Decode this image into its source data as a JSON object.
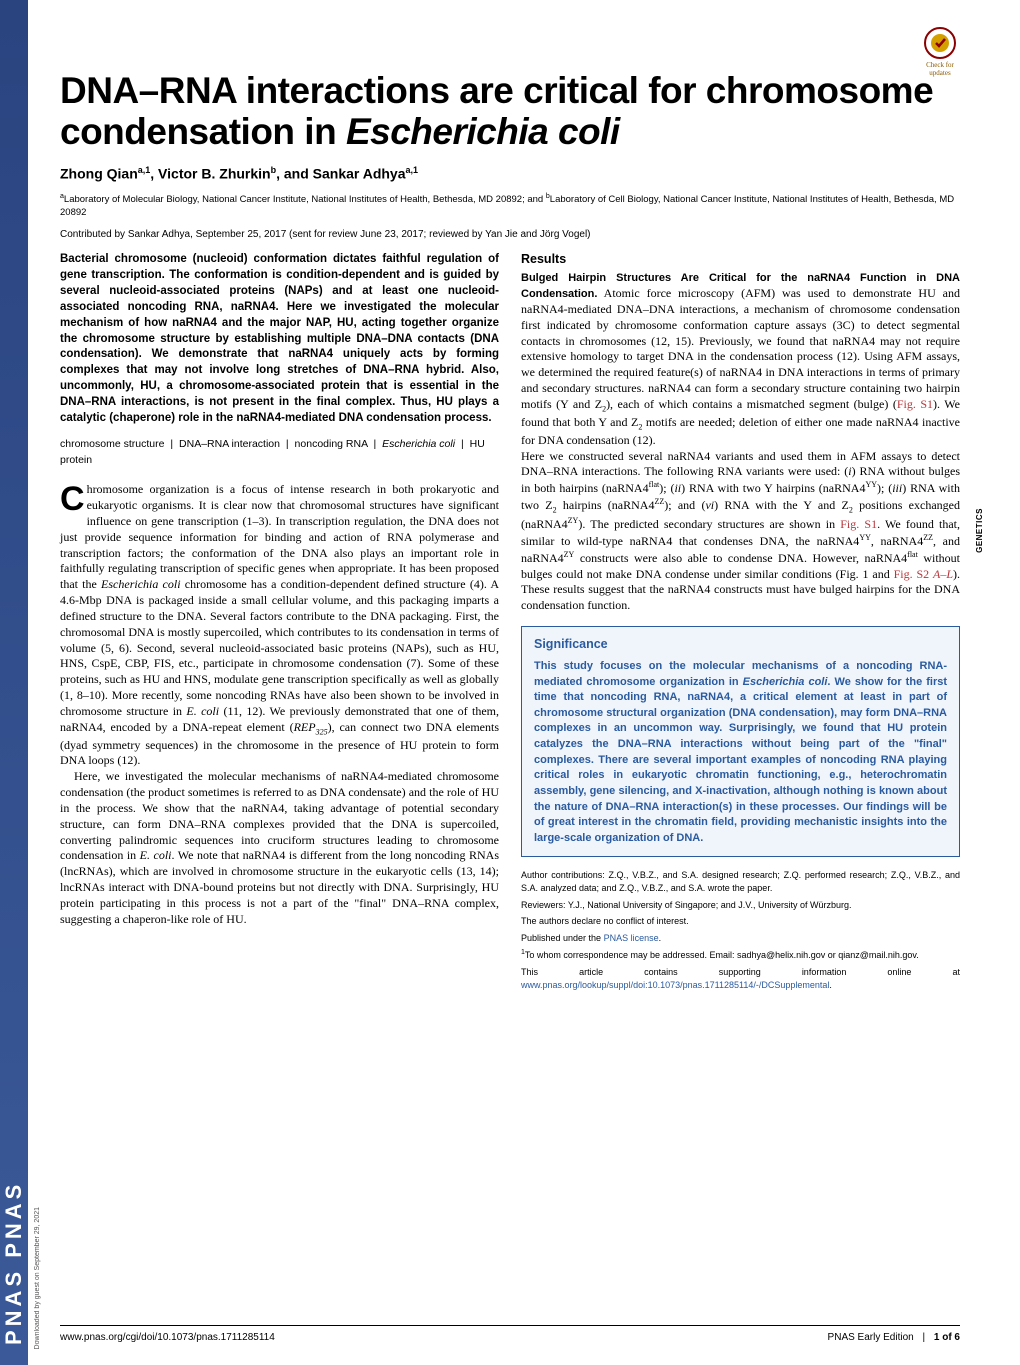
{
  "brand": "PNAS  PNAS",
  "checkUpdates": "Check for updates",
  "title_line1": "DNA–RNA interactions are critical for chromosome",
  "title_line2_a": "condensation in ",
  "title_line2_b": "Escherichia coli",
  "authors_html": "Zhong Qian<sup>a,1</sup>, Victor B. Zhurkin<sup>b</sup>, and Sankar Adhya<sup>a,1</sup>",
  "affiliations_html": "<sup>a</sup>Laboratory of Molecular Biology, National Cancer Institute, National Institutes of Health, Bethesda, MD 20892; and <sup>b</sup>Laboratory of Cell Biology, National Cancer Institute, National Institutes of Health, Bethesda, MD 20892",
  "contributed": "Contributed by Sankar Adhya, September 25, 2017 (sent for review June 23, 2017; reviewed by Yan Jie and Jörg Vogel)",
  "abstract": "Bacterial chromosome (nucleoid) conformation dictates faithful regulation of gene transcription. The conformation is condition-dependent and is guided by several nucleoid-associated proteins (NAPs) and at least one nucleoid-associated noncoding RNA, naRNA4. Here we investigated the molecular mechanism of how naRNA4 and the major NAP, HU, acting together organize the chromosome structure by establishing multiple DNA–DNA contacts (DNA condensation). We demonstrate that naRNA4 uniquely acts by forming complexes that may not involve long stretches of DNA–RNA hybrid. Also, uncommonly, HU, a chromosome-associated protein that is essential in the DNA–RNA interactions, is not present in the final complex. Thus, HU plays a catalytic (chaperone) role in the naRNA4-mediated DNA condensation process.",
  "keywords": [
    "chromosome structure",
    "DNA–RNA interaction",
    "noncoding RNA",
    "Escherichia coli",
    "HU protein"
  ],
  "intro_p1": "hromosome organization is a focus of intense research in both prokaryotic and eukaryotic organisms. It is clear now that chromosomal structures have significant influence on gene transcription (1–3). In transcription regulation, the DNA does not just provide sequence information for binding and action of RNA polymerase and transcription factors; the conformation of the DNA also plays an important role in faithfully regulating transcription of specific genes when appropriate. It has been proposed that the <span class=\"italic\">Escherichia coli</span> chromosome has a condition-dependent defined structure (4). A 4.6-Mbp DNA is packaged inside a small cellular volume, and this packaging imparts a defined structure to the DNA. Several factors contribute to the DNA packaging. First, the chromosomal DNA is mostly supercoiled, which contributes to its condensation in terms of volume (5, 6). Second, several nucleoid-associated basic proteins (NAPs), such as HU, HNS, CspE, CBP, FIS, etc., participate in chromosome condensation (7). Some of these proteins, such as HU and HNS, modulate gene transcription specifically as well as globally (1, 8–10). More recently, some noncoding RNAs have also been shown to be involved in chromosome structure in <span class=\"italic\">E. coli</span> (11, 12). We previously demonstrated that one of them, naRNA4, encoded by a DNA-repeat element (<span class=\"italic\">REP<sub>325</sub></span>), can connect two DNA elements (dyad symmetry sequences) in the chromosome in the presence of HU protein to form DNA loops (12).",
  "intro_p2": "Here, we investigated the molecular mechanisms of naRNA4-mediated chromosome condensation (the product sometimes is referred to as DNA condensate) and the role of HU in the process. We show that the naRNA4, taking advantage of potential secondary structure, can form DNA–RNA complexes provided that the DNA is supercoiled, converting palindromic sequences into cruciform structures leading to chromosome condensation in <span class=\"italic\">E. coli</span>. We note that naRNA4 is different from the long noncoding RNAs (lncRNAs), which are involved in chromosome structure in the eukaryotic cells (13, 14); lncRNAs interact with DNA-bound proteins but not directly with DNA. Surprisingly, HU protein participating in this process is not a part of the \"final\" DNA–RNA complex, suggesting a chaperon-like role of HU.",
  "results_head": "Results",
  "subsection": "Bulged Hairpin Structures Are Critical for the naRNA4 Function in DNA Condensation.",
  "results_p1": "Atomic force microscopy (AFM) was used to demonstrate HU and naRNA4-mediated DNA–DNA interactions, a mechanism of chromosome condensation first indicated by chromosome conformation capture assays (3C) to detect segmental contacts in chromosomes (12, 15). Previously, we found that naRNA4 may not require extensive homology to target DNA in the condensation process (12). Using AFM assays, we determined the required feature(s) of naRNA4 in DNA interactions in terms of primary and secondary structures. naRNA4 can form a secondary structure containing two hairpin motifs (Y and Z<sub>2</sub>), each of which contains a mismatched segment (bulge) (<span class=\"link\">Fig. S1</span>). We found that both Y and Z<sub>2</sub> motifs are needed; deletion of either one made naRNA4 inactive for DNA condensation (12).",
  "results_p2": "Here we constructed several naRNA4 variants and used them in AFM assays to detect DNA–RNA interactions. The following RNA variants were used: (<span class=\"italic\">i</span>) RNA without bulges in both hairpins (naRNA4<sup>flat</sup>); (<span class=\"italic\">ii</span>) RNA with two Y hairpins (naRNA4<sup>YY</sup>); (<span class=\"italic\">iii</span>) RNA with two Z<sub>2</sub> hairpins (naRNA4<sup>ZZ</sup>); and (<span class=\"italic\">vi</span>) RNA with the Y and Z<sub>2</sub> positions exchanged (naRNA4<sup>ZY</sup>). The predicted secondary structures are shown in <span class=\"link\">Fig. S1</span>. We found that, similar to wild-type naRNA4 that condenses DNA, the naRNA4<sup>YY</sup>, naRNA4<sup>ZZ</sup>, and naRNA4<sup>ZY</sup> constructs were also able to condense DNA. However, naRNA4<sup>flat</sup> without bulges could not make DNA condense under similar conditions (Fig. 1 and <span class=\"link\">Fig. S2 <span class=\"italic\">A–L</span></span>). These results suggest that the naRNA4 constructs must have bulged hairpins for the DNA condensation function.",
  "sig_head": "Significance",
  "sig_body": "This study focuses on the molecular mechanisms of a noncoding RNA-mediated chromosome organization in <span class=\"italic\">Escherichia coli</span>. We show for the first time that noncoding RNA, naRNA4, a critical element at least in part of chromosome structural organization (DNA condensation), may form DNA–RNA complexes in an uncommon way. Surprisingly, we found that HU protein catalyzes the DNA–RNA interactions without being part of the \"final\" complexes. There are several important examples of noncoding RNA playing critical roles in eukaryotic chromatin functioning, e.g., heterochromatin assembly, gene silencing, and X-inactivation, although nothing is known about the nature of DNA–RNA interaction(s) in these processes. Our findings will be of great interest in the chromatin field, providing mechanistic insights into the large-scale organization of DNA.",
  "fn_author": "Author contributions: Z.Q., V.B.Z., and S.A. designed research; Z.Q. performed research; Z.Q., V.B.Z., and S.A. analyzed data; and Z.Q., V.B.Z., and S.A. wrote the paper.",
  "fn_reviewers": "Reviewers: Y.J., National University of Singapore; and J.V., University of Würzburg.",
  "fn_conflict": "The authors declare no conflict of interest.",
  "fn_license_a": "Published under the ",
  "fn_license_b": "PNAS license",
  "fn_corr": "<sup>1</sup>To whom correspondence may be addressed. Email: sadhya@helix.nih.gov or qianz@mail.nih.gov.",
  "fn_supp_a": "This article contains supporting information online at ",
  "fn_supp_b": "www.pnas.org/lookup/suppl/doi:10.1073/pnas.1711285114/-/DCSupplemental",
  "side_label": "GENETICS",
  "dl_note": "Downloaded by guest on September 29, 2021",
  "footer_left": "www.pnas.org/cgi/doi/10.1073/pnas.1711285114",
  "footer_right_a": "PNAS Early Edition",
  "footer_right_b": "1 of 6",
  "colors": {
    "link": "#b8353a",
    "sig_blue": "#2a5a9f",
    "sig_bg": "#f0f5fb",
    "brand_bg": "#3b5998"
  }
}
